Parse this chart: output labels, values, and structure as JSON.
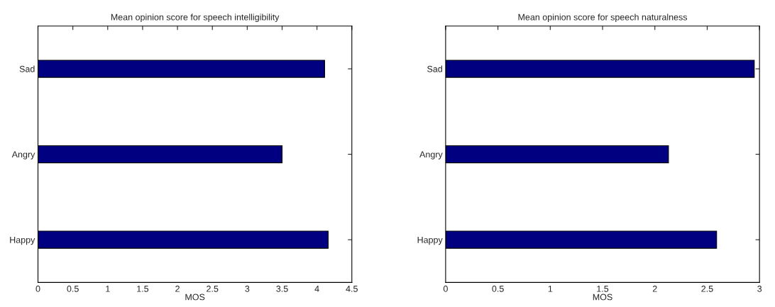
{
  "chart_data": [
    {
      "type": "bar",
      "orientation": "horizontal",
      "title": "Mean opinion score for speech intelligibility",
      "xlabel": "MOS",
      "categories": [
        "Sad",
        "Angry",
        "Happy"
      ],
      "values": [
        4.11,
        3.5,
        4.16
      ],
      "color": "#000080",
      "xlim": [
        0,
        4.5
      ],
      "xticks": [
        0,
        0.5,
        1,
        1.5,
        2,
        2.5,
        3,
        3.5,
        4,
        4.5
      ],
      "grid": false,
      "legend": false
    },
    {
      "type": "bar",
      "orientation": "horizontal",
      "title": "Mean opinion score for speech naturalness",
      "xlabel": "MOS",
      "categories": [
        "Sad",
        "Angry",
        "Happy"
      ],
      "values": [
        2.95,
        2.13,
        2.59
      ],
      "color": "#000080",
      "xlim": [
        0,
        3
      ],
      "xticks": [
        0,
        0.5,
        1,
        1.5,
        2,
        2.5,
        3
      ],
      "grid": false,
      "legend": false
    }
  ]
}
